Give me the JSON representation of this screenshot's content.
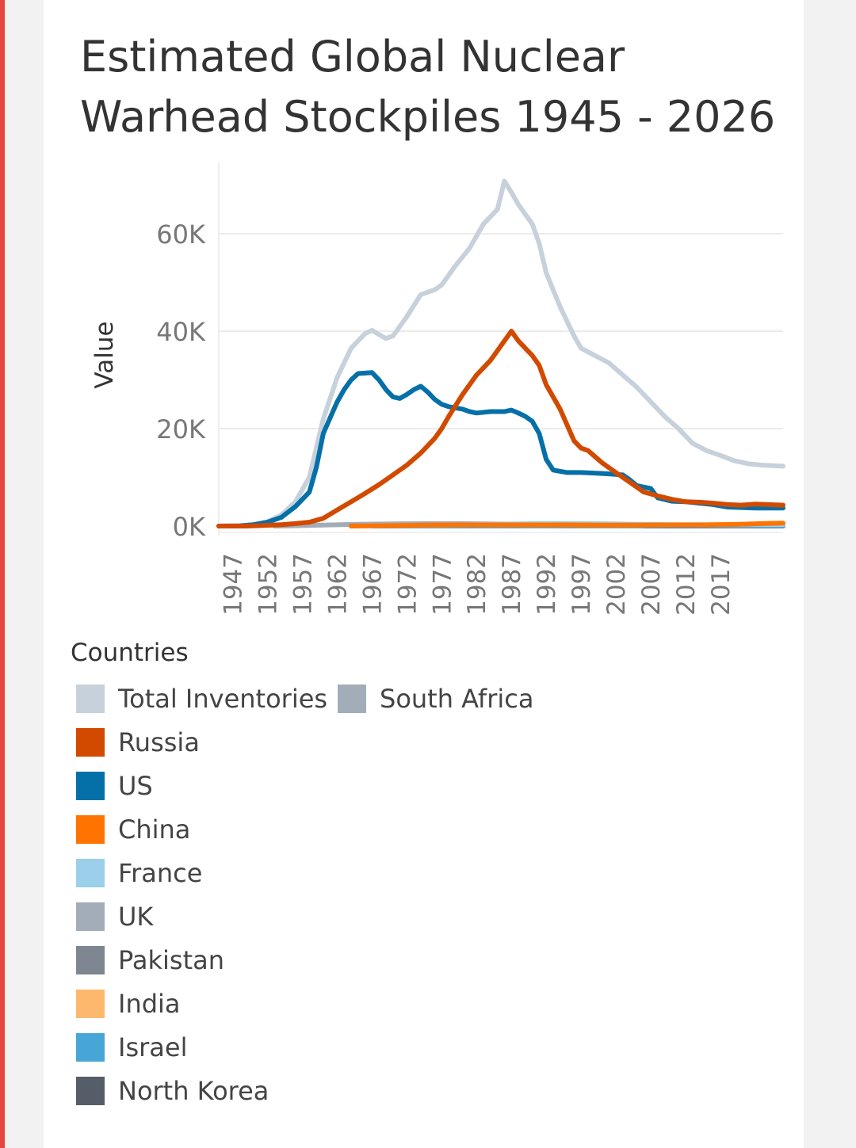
{
  "title": "Estimated Global Nuclear Warhead Stockpiles 1945 - 2026",
  "legend": {
    "title": "Countries",
    "items": [
      {
        "label": "Total Inventories",
        "color": "#c7d1db"
      },
      {
        "label": "South Africa",
        "color": "#a3adb9"
      },
      {
        "label": "Russia",
        "color": "#d24a00"
      },
      {
        "label": "US",
        "color": "#0570a8"
      },
      {
        "label": "China",
        "color": "#ff7300"
      },
      {
        "label": "France",
        "color": "#9ccfea"
      },
      {
        "label": "UK",
        "color": "#a3adb9"
      },
      {
        "label": "Pakistan",
        "color": "#7d8691"
      },
      {
        "label": "India",
        "color": "#fdb86e"
      },
      {
        "label": "Israel",
        "color": "#47a6d6"
      },
      {
        "label": "North Korea",
        "color": "#555d68"
      }
    ]
  },
  "chart_data": {
    "type": "line",
    "title": "Estimated Global Nuclear Warhead Stockpiles 1945 - 2026",
    "xlabel": "",
    "ylabel": "Value",
    "xlim": [
      1945,
      2026
    ],
    "ylim": [
      0,
      70000
    ],
    "x_ticks": [
      "1947",
      "1952",
      "1957",
      "1962",
      "1967",
      "1972",
      "1977",
      "1982",
      "1987",
      "1992",
      "1997",
      "2002",
      "2007",
      "2012",
      "2017"
    ],
    "y_ticks": [
      {
        "value": 0,
        "label": "0K"
      },
      {
        "value": 20000,
        "label": "20K"
      },
      {
        "value": 40000,
        "label": "40K"
      },
      {
        "value": 60000,
        "label": "60K"
      }
    ],
    "grid": true,
    "legend_position": "bottom",
    "series": [
      {
        "name": "Total Inventories",
        "color": "#c7d1db",
        "points": [
          [
            1945,
            2
          ],
          [
            1948,
            100
          ],
          [
            1950,
            300
          ],
          [
            1952,
            900
          ],
          [
            1954,
            2300
          ],
          [
            1956,
            5000
          ],
          [
            1958,
            10000
          ],
          [
            1960,
            22000
          ],
          [
            1962,
            30500
          ],
          [
            1964,
            36500
          ],
          [
            1966,
            39500
          ],
          [
            1967,
            40200
          ],
          [
            1968,
            39300
          ],
          [
            1969,
            38500
          ],
          [
            1970,
            39000
          ],
          [
            1972,
            43000
          ],
          [
            1974,
            47500
          ],
          [
            1976,
            48500
          ],
          [
            1977,
            49500
          ],
          [
            1979,
            53500
          ],
          [
            1981,
            57000
          ],
          [
            1983,
            62000
          ],
          [
            1985,
            65000
          ],
          [
            1986,
            70800
          ],
          [
            1987,
            68500
          ],
          [
            1988,
            66000
          ],
          [
            1990,
            62000
          ],
          [
            1991,
            58000
          ],
          [
            1992,
            52000
          ],
          [
            1994,
            45000
          ],
          [
            1996,
            39000
          ],
          [
            1997,
            36500
          ],
          [
            1999,
            35000
          ],
          [
            2001,
            33500
          ],
          [
            2003,
            31000
          ],
          [
            2005,
            28500
          ],
          [
            2007,
            25500
          ],
          [
            2009,
            22500
          ],
          [
            2011,
            20000
          ],
          [
            2013,
            17000
          ],
          [
            2015,
            15500
          ],
          [
            2017,
            14500
          ],
          [
            2019,
            13400
          ],
          [
            2021,
            12800
          ],
          [
            2023,
            12500
          ],
          [
            2026,
            12300
          ]
        ]
      },
      {
        "name": "US",
        "color": "#0570a8",
        "points": [
          [
            1945,
            2
          ],
          [
            1948,
            50
          ],
          [
            1950,
            300
          ],
          [
            1952,
            800
          ],
          [
            1954,
            1800
          ],
          [
            1956,
            4000
          ],
          [
            1958,
            7000
          ],
          [
            1959,
            12000
          ],
          [
            1960,
            19000
          ],
          [
            1962,
            25500
          ],
          [
            1963,
            28000
          ],
          [
            1964,
            30000
          ],
          [
            1965,
            31300
          ],
          [
            1967,
            31500
          ],
          [
            1968,
            30000
          ],
          [
            1969,
            28000
          ],
          [
            1970,
            26500
          ],
          [
            1971,
            26200
          ],
          [
            1972,
            27000
          ],
          [
            1973,
            28000
          ],
          [
            1974,
            28700
          ],
          [
            1975,
            27500
          ],
          [
            1976,
            26000
          ],
          [
            1977,
            25000
          ],
          [
            1978,
            24500
          ],
          [
            1980,
            24000
          ],
          [
            1981,
            23500
          ],
          [
            1982,
            23200
          ],
          [
            1984,
            23500
          ],
          [
            1986,
            23500
          ],
          [
            1987,
            23800
          ],
          [
            1988,
            23200
          ],
          [
            1989,
            22500
          ],
          [
            1990,
            21500
          ],
          [
            1991,
            19000
          ],
          [
            1992,
            13700
          ],
          [
            1993,
            11500
          ],
          [
            1995,
            11000
          ],
          [
            1997,
            11000
          ],
          [
            2000,
            10800
          ],
          [
            2003,
            10500
          ],
          [
            2004,
            9500
          ],
          [
            2005,
            8300
          ],
          [
            2007,
            7700
          ],
          [
            2008,
            5800
          ],
          [
            2010,
            5100
          ],
          [
            2012,
            5000
          ],
          [
            2014,
            4700
          ],
          [
            2016,
            4400
          ],
          [
            2018,
            3900
          ],
          [
            2020,
            3800
          ],
          [
            2022,
            3700
          ],
          [
            2026,
            3700
          ]
        ]
      },
      {
        "name": "Russia",
        "color": "#d24a00",
        "points": [
          [
            1945,
            0
          ],
          [
            1949,
            0
          ],
          [
            1951,
            100
          ],
          [
            1954,
            300
          ],
          [
            1956,
            500
          ],
          [
            1958,
            800
          ],
          [
            1960,
            1600
          ],
          [
            1962,
            3300
          ],
          [
            1964,
            5000
          ],
          [
            1966,
            6700
          ],
          [
            1968,
            8500
          ],
          [
            1970,
            10500
          ],
          [
            1972,
            12500
          ],
          [
            1974,
            15000
          ],
          [
            1976,
            18000
          ],
          [
            1977,
            20000
          ],
          [
            1978,
            22500
          ],
          [
            1980,
            27000
          ],
          [
            1982,
            31000
          ],
          [
            1984,
            34000
          ],
          [
            1985,
            36000
          ],
          [
            1986,
            38000
          ],
          [
            1987,
            40000
          ],
          [
            1988,
            38000
          ],
          [
            1990,
            35000
          ],
          [
            1991,
            33000
          ],
          [
            1992,
            29000
          ],
          [
            1994,
            24000
          ],
          [
            1996,
            17500
          ],
          [
            1997,
            16000
          ],
          [
            1998,
            15500
          ],
          [
            2000,
            13000
          ],
          [
            2002,
            11000
          ],
          [
            2004,
            9000
          ],
          [
            2006,
            7000
          ],
          [
            2008,
            6200
          ],
          [
            2010,
            5500
          ],
          [
            2012,
            5000
          ],
          [
            2014,
            4900
          ],
          [
            2016,
            4700
          ],
          [
            2018,
            4400
          ],
          [
            2020,
            4300
          ],
          [
            2022,
            4500
          ],
          [
            2026,
            4300
          ]
        ]
      },
      {
        "name": "China",
        "color": "#ff7300",
        "points": [
          [
            1964,
            0
          ],
          [
            1966,
            50
          ],
          [
            1970,
            100
          ],
          [
            1975,
            200
          ],
          [
            1980,
            250
          ],
          [
            1985,
            250
          ],
          [
            1990,
            250
          ],
          [
            1995,
            250
          ],
          [
            2000,
            200
          ],
          [
            2005,
            200
          ],
          [
            2010,
            250
          ],
          [
            2015,
            250
          ],
          [
            2020,
            350
          ],
          [
            2023,
            500
          ],
          [
            2026,
            600
          ]
        ]
      },
      {
        "name": "UK",
        "color": "#a3adb9",
        "points": [
          [
            1953,
            0
          ],
          [
            1955,
            50
          ],
          [
            1960,
            200
          ],
          [
            1965,
            350
          ],
          [
            1970,
            450
          ],
          [
            1975,
            500
          ],
          [
            1980,
            480
          ],
          [
            1985,
            420
          ],
          [
            1990,
            400
          ],
          [
            1995,
            320
          ],
          [
            2000,
            280
          ],
          [
            2005,
            250
          ],
          [
            2010,
            230
          ],
          [
            2015,
            220
          ],
          [
            2020,
            215
          ],
          [
            2026,
            225
          ]
        ]
      },
      {
        "name": "France",
        "color": "#9ccfea",
        "points": [
          [
            1964,
            0
          ],
          [
            1966,
            30
          ],
          [
            1970,
            100
          ],
          [
            1975,
            180
          ],
          [
            1980,
            250
          ],
          [
            1985,
            350
          ],
          [
            1990,
            500
          ],
          [
            1992,
            540
          ],
          [
            1995,
            500
          ],
          [
            2000,
            470
          ],
          [
            2005,
            350
          ],
          [
            2010,
            300
          ],
          [
            2015,
            300
          ],
          [
            2020,
            290
          ],
          [
            2026,
            290
          ]
        ]
      },
      {
        "name": "Israel",
        "color": "#47a6d6",
        "points": [
          [
            1967,
            0
          ],
          [
            1975,
            20
          ],
          [
            1985,
            50
          ],
          [
            1995,
            70
          ],
          [
            2005,
            80
          ],
          [
            2015,
            85
          ],
          [
            2026,
            90
          ]
        ]
      },
      {
        "name": "India",
        "color": "#fdb86e",
        "points": [
          [
            1974,
            0
          ],
          [
            1990,
            10
          ],
          [
            2000,
            30
          ],
          [
            2010,
            80
          ],
          [
            2020,
            160
          ],
          [
            2026,
            180
          ]
        ]
      },
      {
        "name": "Pakistan",
        "color": "#7d8691",
        "points": [
          [
            1986,
            0
          ],
          [
            1995,
            10
          ],
          [
            2000,
            30
          ],
          [
            2010,
            80
          ],
          [
            2020,
            160
          ],
          [
            2026,
            170
          ]
        ]
      },
      {
        "name": "South Africa",
        "color": "#a3adb9",
        "points": [
          [
            1979,
            0
          ],
          [
            1982,
            2
          ],
          [
            1985,
            4
          ],
          [
            1990,
            6
          ],
          [
            1991,
            0
          ],
          [
            2026,
            0
          ]
        ]
      },
      {
        "name": "North Korea",
        "color": "#555d68",
        "points": [
          [
            2006,
            0
          ],
          [
            2010,
            5
          ],
          [
            2015,
            15
          ],
          [
            2020,
            40
          ],
          [
            2026,
            50
          ]
        ]
      }
    ]
  }
}
